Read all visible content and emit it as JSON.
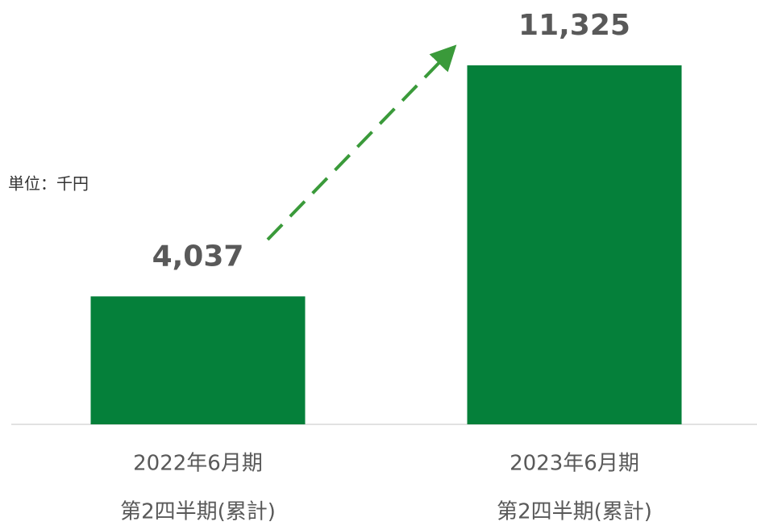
{
  "chart_data": {
    "type": "bar",
    "annotation": "単位：千円",
    "categories": [
      [
        "2022年6月期",
        "第2四半期(累計)"
      ],
      [
        "2023年6月期",
        "第2四半期(累計)"
      ]
    ],
    "values": [
      4037,
      11325
    ],
    "value_labels": [
      "4,037",
      "11,325"
    ],
    "color": "#05803a"
  }
}
